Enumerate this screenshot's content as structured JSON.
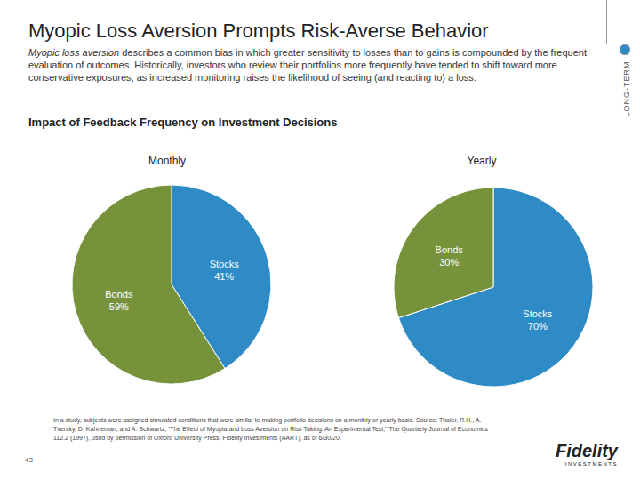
{
  "title": "Myopic Loss Aversion Prompts Risk-Averse Behavior",
  "description": [
    "Myopic loss aversion",
    "describes a common bias in which greater sensitivity to losses than to gains is compounded by the frequent evaluation of outcomes. Historically, investors who review their portfolios more frequently have tended to shift toward more conservative exposures, as increased monitoring raises the likelihood of seeing (and reacting to) a loss."
  ],
  "subtitle": "Impact of Feedback Frequency on Investment Decisions",
  "side_label": "LONG-TERM",
  "page_number": 43,
  "footnote": "In a study, subjects were assigned simulated conditions that were similar to making portfolio decisions on a monthly or yearly basis. Source: Thaler, R.H., A. Tversky, D. Kahneman, and A. Schwartz, “The Effect of Myopia and Loss Aversion on Risk Taking: An Experimental Test,” The Quarterly Journal of Economics 112.2 (1997), used by permission of Oxford University Press; Fidelity Investments (AART), as of 6/30/20.",
  "logo": {
    "name": "Fidelity",
    "tagline": "INVESTMENTS"
  },
  "chart_data": [
    {
      "type": "pie",
      "title": "Monthly",
      "categories": [
        "Stocks",
        "Bonds"
      ],
      "values": [
        41,
        59
      ],
      "value_labels": [
        "41%",
        "59%"
      ],
      "colors": [
        "#2e8bc6",
        "#76933c"
      ]
    },
    {
      "type": "pie",
      "title": "Yearly",
      "categories": [
        "Stocks",
        "Bonds"
      ],
      "values": [
        70,
        30
      ],
      "value_labels": [
        "70%",
        "30%"
      ],
      "colors": [
        "#2e8bc6",
        "#76933c"
      ]
    }
  ]
}
